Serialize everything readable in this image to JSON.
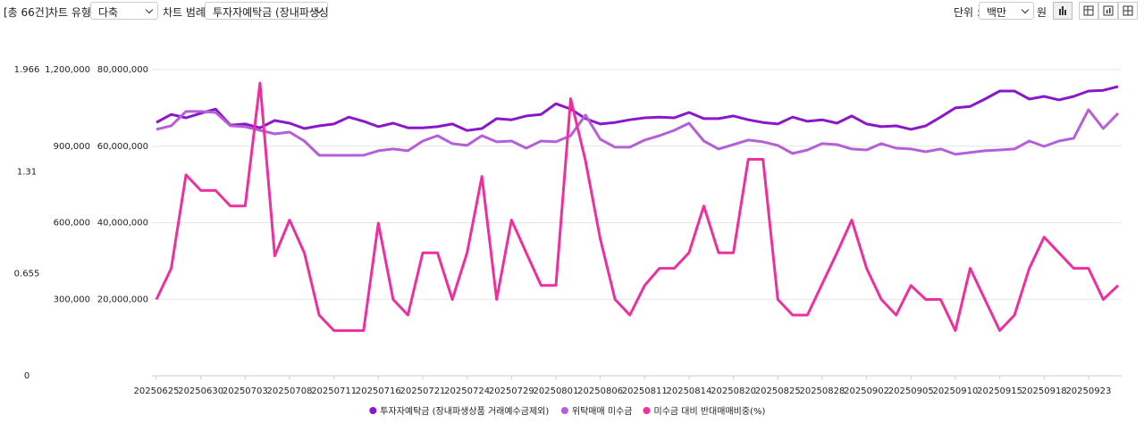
{
  "toolbar": {
    "count": "[총 66건]",
    "chart_type_label": "차트 유형",
    "chart_type": "다축",
    "legend_label": "차트 범례",
    "legend_select": "투자자예탁금 (장내파생상",
    "unit_label": "단위 :",
    "unit": "백만",
    "currency": "원"
  },
  "chart_data": {
    "type": "line",
    "categories": [
      "20250625",
      null,
      null,
      "20250630",
      null,
      null,
      "20250703",
      null,
      null,
      "20250708",
      null,
      null,
      "20250711",
      null,
      null,
      "20250716",
      null,
      null,
      "20250721",
      null,
      null,
      "20250724",
      null,
      null,
      "20250729",
      null,
      null,
      "20250801",
      null,
      null,
      "20250806",
      null,
      null,
      "20250811",
      null,
      null,
      "20250814",
      null,
      null,
      "20250820",
      null,
      null,
      "20250825",
      null,
      null,
      "20250828",
      null,
      null,
      "20250902",
      null,
      null,
      "20250905",
      null,
      null,
      "20250910",
      null,
      null,
      "20250915",
      null,
      null,
      "20250918",
      null,
      null,
      "20250923",
      null,
      null
    ],
    "ylim": [
      0,
      80000000
    ],
    "yticks": [
      {
        "value": 20000000,
        "label": "20,000,000"
      },
      {
        "value": 40000000,
        "label": "40,000,000"
      },
      {
        "value": 60000000,
        "label": "60,000,000"
      },
      {
        "value": 80000000,
        "label": "80,000,000"
      }
    ],
    "y2lim": [
      0,
      1200000
    ],
    "y2ticks": [
      {
        "value": 300000,
        "label": "300,000"
      },
      {
        "value": 600000,
        "label": "600,000"
      },
      {
        "value": 900000,
        "label": "900,000"
      },
      {
        "value": 1200000,
        "label": "1,200,000"
      }
    ],
    "y3lim": [
      0,
      1.966
    ],
    "y3ticks": [
      0,
      0.655,
      1.31,
      1.966
    ],
    "grid": true,
    "legend": "bottom",
    "series": [
      {
        "name": "투자자예탁금 (장내파생상품 거래예수금제외)",
        "color": "#8a17c9",
        "axis": "y",
        "values": [
          66200000,
          68300000,
          67400000,
          68600000,
          69700000,
          65500000,
          65800000,
          64800000,
          66700000,
          66000000,
          64600000,
          65300000,
          65800000,
          67600000,
          66500000,
          65100000,
          66000000,
          64800000,
          64800000,
          65100000,
          65800000,
          64100000,
          64600000,
          67200000,
          66900000,
          67900000,
          68300000,
          71100000,
          69700000,
          67200000,
          65800000,
          66200000,
          66900000,
          67400000,
          67600000,
          67400000,
          68800000,
          67200000,
          67200000,
          67900000,
          66900000,
          66200000,
          65800000,
          67600000,
          66500000,
          66900000,
          66000000,
          67900000,
          65800000,
          65100000,
          65300000,
          64400000,
          65300000,
          67600000,
          70000000,
          70400000,
          72300000,
          74400000,
          74400000,
          72300000,
          73000000,
          72100000,
          73000000,
          74400000,
          74600000,
          75600000
        ]
      },
      {
        "name": "위탁매매 미수금",
        "color": "#b55fd9",
        "axis": "y2",
        "values": [
          966000,
          980000,
          1036000,
          1036000,
          1032000,
          980000,
          976000,
          962000,
          948000,
          955000,
          920000,
          864000,
          864000,
          864000,
          864000,
          882000,
          889000,
          882000,
          920000,
          941000,
          910000,
          903000,
          941000,
          917000,
          920000,
          892000,
          920000,
          917000,
          941000,
          1022000,
          927000,
          896000,
          896000,
          924000,
          941000,
          962000,
          990000,
          920000,
          889000,
          906000,
          924000,
          917000,
          903000,
          871000,
          885000,
          910000,
          906000,
          889000,
          885000,
          910000,
          892000,
          889000,
          878000,
          889000,
          868000,
          875000,
          882000,
          885000,
          889000,
          920000,
          899000,
          920000,
          931000,
          1043000,
          969000,
          1029000
        ]
      },
      {
        "name": "미수금 대비 반대매매비중(%)",
        "color": "#ee2f9f",
        "axis": "y3",
        "values": [
          0.49,
          0.69,
          1.29,
          1.19,
          1.19,
          1.09,
          1.09,
          1.88,
          0.77,
          1.0,
          0.79,
          0.39,
          0.29,
          0.29,
          0.29,
          0.98,
          0.49,
          0.39,
          0.79,
          0.79,
          0.49,
          0.79,
          1.28,
          0.49,
          1.0,
          0.79,
          0.58,
          0.58,
          1.78,
          1.38,
          0.88,
          0.49,
          0.39,
          0.58,
          0.69,
          0.69,
          0.79,
          1.09,
          0.79,
          0.79,
          1.39,
          1.39,
          0.49,
          0.39,
          0.39,
          0.59,
          0.79,
          1.0,
          0.69,
          0.49,
          0.39,
          0.58,
          0.49,
          0.49,
          0.29,
          0.69,
          0.49,
          0.29,
          0.39,
          0.69,
          0.89,
          0.79,
          0.69,
          0.69,
          0.49,
          0.58
        ]
      }
    ]
  }
}
